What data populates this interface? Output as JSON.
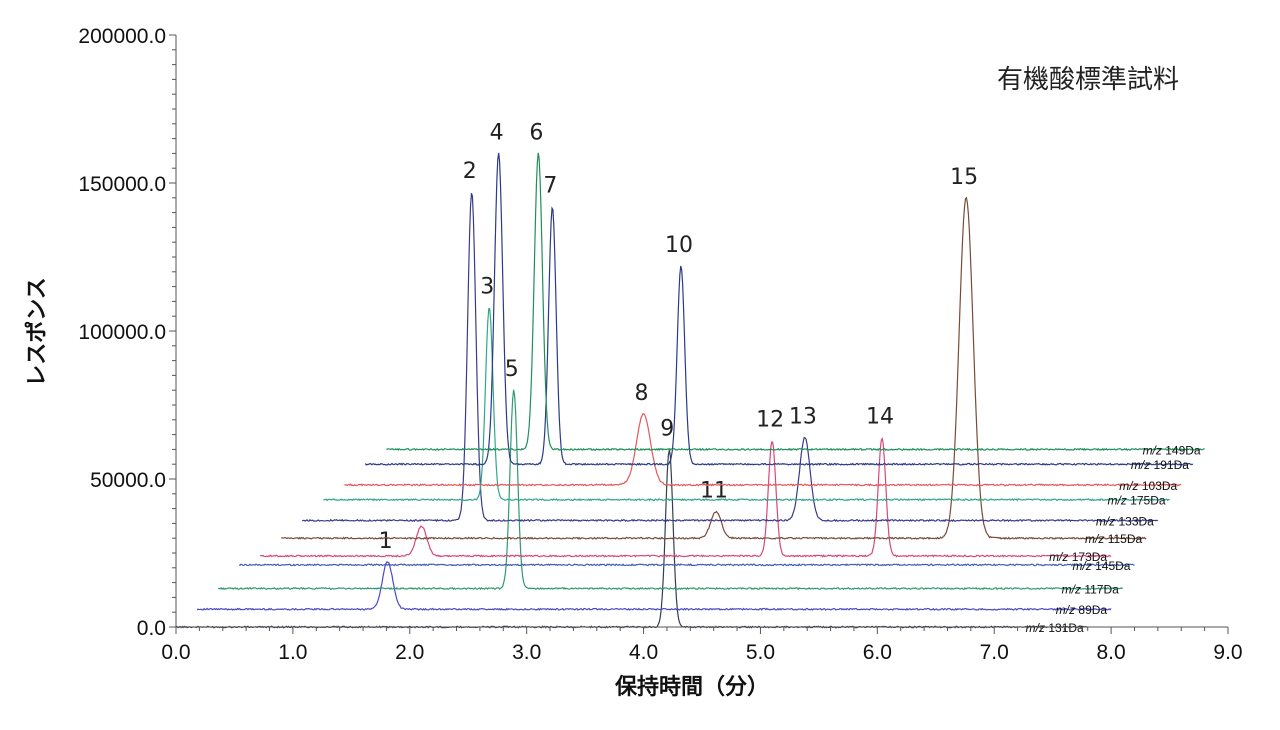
{
  "chart_data": {
    "type": "line",
    "title": "有機酸標準試料",
    "xlabel": "保持時間（分）",
    "ylabel": "レスポンス",
    "xlim": [
      0.0,
      9.0
    ],
    "ylim": [
      0.0,
      200000.0
    ],
    "x_ticks": [
      "0.0",
      "1.0",
      "2.0",
      "3.0",
      "4.0",
      "5.0",
      "6.0",
      "7.0",
      "8.0",
      "9.0"
    ],
    "y_ticks": [
      "0.0",
      "50000.0",
      "100000.0",
      "150000.0",
      "200000.0"
    ],
    "plot_style": "stacked offset chromatograms (waterfall), each trace shifted right and up",
    "series": [
      {
        "name": "m/z 131Da",
        "color": "#333f4f",
        "x_offset": 0.0,
        "baseline": 0,
        "x_end": 7.8,
        "peaks": [
          {
            "rt": 4.22,
            "height": 60000,
            "label": "9"
          }
        ]
      },
      {
        "name": "m/z 89Da",
        "color": "#4a4ac0",
        "x_offset": 0.18,
        "baseline": 6000,
        "x_end": 8.0,
        "peaks": [
          {
            "rt": 1.63,
            "height": 16000,
            "label": "1"
          }
        ]
      },
      {
        "name": "m/z 117Da",
        "color": "#2e9b6e",
        "x_offset": 0.36,
        "baseline": 13000,
        "x_end": 8.1,
        "peaks": [
          {
            "rt": 2.53,
            "height": 67000,
            "label": "5"
          }
        ]
      },
      {
        "name": "m/z 145Da",
        "color": "#3d5fb0",
        "x_offset": 0.54,
        "baseline": 21000,
        "x_end": 8.2,
        "peaks": []
      },
      {
        "name": "m/z 173Da",
        "color": "#d8477a",
        "x_offset": 0.72,
        "baseline": 24000,
        "x_end": 8.0,
        "peaks": [
          {
            "rt": 1.38,
            "height": 10000,
            "label": ""
          },
          {
            "rt": 4.38,
            "height": 39000,
            "label": "12"
          },
          {
            "rt": 5.32,
            "height": 40000,
            "label": "14"
          }
        ]
      },
      {
        "name": "m/z 115Da",
        "color": "#7a4a3a",
        "x_offset": 0.9,
        "baseline": 30000,
        "x_end": 8.3,
        "peaks": [
          {
            "rt": 3.72,
            "height": 9000,
            "label": "11"
          },
          {
            "rt": 5.86,
            "height": 115000,
            "label": "15"
          }
        ]
      },
      {
        "name": "m/z 133Da",
        "color": "#3a3a8a",
        "x_offset": 1.08,
        "baseline": 36000,
        "x_end": 8.4,
        "peaks": [
          {
            "rt": 1.45,
            "height": 111000,
            "label": "2"
          },
          {
            "rt": 4.3,
            "height": 28000,
            "label": "13"
          }
        ]
      },
      {
        "name": "m/z 175Da",
        "color": "#2fa88a",
        "x_offset": 1.26,
        "baseline": 43000,
        "x_end": 8.5,
        "peaks": [
          {
            "rt": 1.42,
            "height": 65000,
            "label": "3"
          }
        ]
      },
      {
        "name": "m/z 103Da",
        "color": "#e05a5a",
        "x_offset": 1.44,
        "baseline": 48000,
        "x_end": 8.6,
        "peaks": [
          {
            "rt": 2.56,
            "height": 24000,
            "label": "8"
          }
        ]
      },
      {
        "name": "m/z 191Da",
        "color": "#2b3a8a",
        "x_offset": 1.62,
        "baseline": 55000,
        "x_end": 8.7,
        "peaks": [
          {
            "rt": 1.14,
            "height": 105000,
            "label": "4"
          },
          {
            "rt": 1.6,
            "height": 87000,
            "label": "7"
          },
          {
            "rt": 2.7,
            "height": 67000,
            "label": "10"
          }
        ]
      },
      {
        "name": "m/z 149Da",
        "color": "#1f8f5a",
        "x_offset": 1.8,
        "baseline": 60000,
        "x_end": 8.8,
        "peaks": [
          {
            "rt": 1.3,
            "height": 100000,
            "label": "6"
          }
        ]
      }
    ],
    "grid": false,
    "legend": "none"
  }
}
